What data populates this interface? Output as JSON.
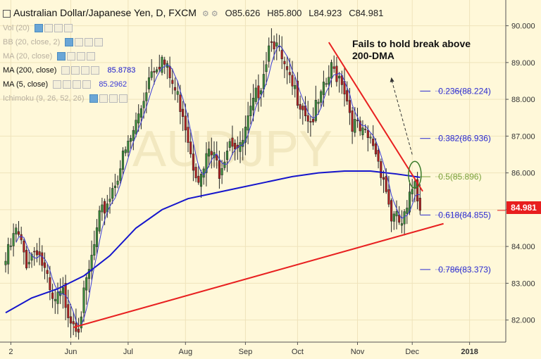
{
  "chart_data": {
    "type": "candlestick",
    "title": "Australian Dollar/Japanese Yen, D, FXCM",
    "ohlc": {
      "open": "O85.626",
      "high": "H85.800",
      "low": "L84.923",
      "close": "C84.981"
    },
    "last_price": 84.981,
    "last_price_label": "84.981",
    "y_range": [
      81.4,
      90.7
    ],
    "y_ticks": [
      {
        "value": 90,
        "label": "90.000"
      },
      {
        "value": 89,
        "label": "89.000"
      },
      {
        "value": 88,
        "label": "88.000"
      },
      {
        "value": 87,
        "label": "87.000"
      },
      {
        "value": 86,
        "label": "86.000"
      },
      {
        "value": 85,
        "label": "85.000"
      },
      {
        "value": 84,
        "label": "84.000"
      },
      {
        "value": 83,
        "label": "83.000"
      },
      {
        "value": 82,
        "label": "82.000"
      }
    ],
    "x_ticks": [
      {
        "label": "2",
        "bar": 2
      },
      {
        "label": "Jun",
        "bar": 25
      },
      {
        "label": "Jul",
        "bar": 47
      },
      {
        "label": "Aug",
        "bar": 69
      },
      {
        "label": "Sep",
        "bar": 92
      },
      {
        "label": "Oct",
        "bar": 112
      },
      {
        "label": "Nov",
        "bar": 135
      },
      {
        "label": "Dec",
        "bar": 156
      },
      {
        "label": "2018",
        "bar": 178
      }
    ],
    "key_points": [
      [
        0,
        83.6
      ],
      [
        4,
        84.4
      ],
      [
        8,
        83.6
      ],
      [
        12,
        84.0
      ],
      [
        15,
        83.3
      ],
      [
        18,
        82.4
      ],
      [
        22,
        82.7
      ],
      [
        25,
        82.1
      ],
      [
        28,
        81.9
      ],
      [
        32,
        83.3
      ],
      [
        36,
        84.7
      ],
      [
        40,
        85.4
      ],
      [
        44,
        86.2
      ],
      [
        48,
        86.9
      ],
      [
        52,
        87.8
      ],
      [
        56,
        88.9
      ],
      [
        60,
        89.1
      ],
      [
        64,
        88.4
      ],
      [
        68,
        87.7
      ],
      [
        72,
        86.3
      ],
      [
        75,
        85.8
      ],
      [
        78,
        86.6
      ],
      [
        82,
        86.1
      ],
      [
        86,
        87.0
      ],
      [
        90,
        86.6
      ],
      [
        94,
        87.6
      ],
      [
        98,
        88.5
      ],
      [
        102,
        89.8
      ],
      [
        105,
        89.2
      ],
      [
        109,
        88.4
      ],
      [
        113,
        88.0
      ],
      [
        117,
        87.4
      ],
      [
        121,
        88.0
      ],
      [
        125,
        88.8
      ],
      [
        129,
        88.6
      ],
      [
        133,
        87.4
      ],
      [
        137,
        87.0
      ],
      [
        141,
        86.8
      ],
      [
        145,
        85.9
      ],
      [
        148,
        84.8
      ],
      [
        152,
        84.6
      ],
      [
        154,
        84.9
      ],
      [
        157,
        85.9
      ],
      [
        159,
        84.98
      ]
    ],
    "series": [
      {
        "name": "MA (200, close)",
        "value": "85.8783",
        "color": "#1515cc",
        "points": [
          [
            0,
            82.2
          ],
          [
            10,
            82.6
          ],
          [
            20,
            82.85
          ],
          [
            30,
            83.2
          ],
          [
            40,
            83.75
          ],
          [
            50,
            84.5
          ],
          [
            60,
            85.0
          ],
          [
            70,
            85.3
          ],
          [
            80,
            85.45
          ],
          [
            90,
            85.6
          ],
          [
            100,
            85.75
          ],
          [
            110,
            85.9
          ],
          [
            120,
            86.0
          ],
          [
            130,
            86.05
          ],
          [
            140,
            86.05
          ],
          [
            150,
            85.97
          ],
          [
            159,
            85.88
          ]
        ]
      },
      {
        "name": "MA (5, close)",
        "value": "85.2962",
        "color": "#3a3ad6"
      }
    ],
    "indicators_inactive": [
      {
        "name": "Vol (20)"
      },
      {
        "name": "BB (20, close, 2)"
      },
      {
        "name": "MA (20, close)"
      },
      {
        "name": "Ichimoku (9, 26, 52, 26)"
      }
    ],
    "fib_levels": [
      {
        "label": "0.236(88.224)",
        "value": 88.224,
        "color": "#2a2ad0"
      },
      {
        "label": "0.382(86.936)",
        "value": 86.936,
        "color": "#2a2ad0"
      },
      {
        "label": "0.5(85.896)",
        "value": 85.896,
        "color": "#7aa03a"
      },
      {
        "label": "0.618(84.855)",
        "value": 84.855,
        "color": "#2a2ad0"
      },
      {
        "label": "0.786(83.373)",
        "value": 83.373,
        "color": "#2a2ad0"
      }
    ],
    "trendlines": [
      {
        "from": [
          26,
          81.8
        ],
        "to": [
          168,
          84.62
        ],
        "color": "#e82020"
      },
      {
        "from": [
          124,
          89.55
        ],
        "to": [
          160,
          85.5
        ],
        "color": "#e82020"
      }
    ],
    "annotation": "Fails to hold break above 200-DMA",
    "watermark": "AUDJPY"
  }
}
